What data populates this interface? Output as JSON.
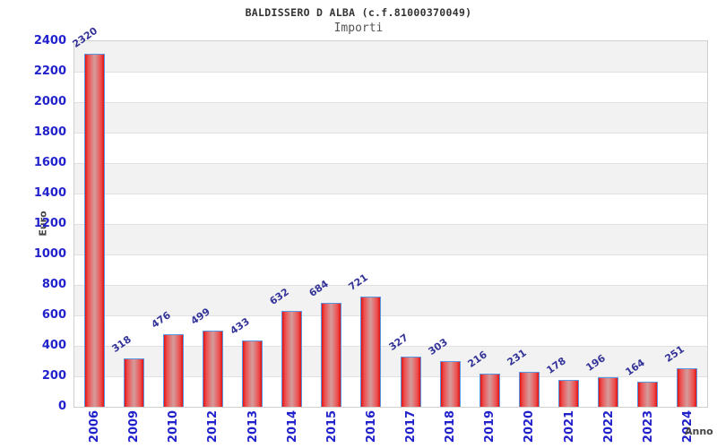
{
  "chart_data": {
    "type": "bar",
    "title": "BALDISSERO D ALBA (c.f.81000370049)",
    "subtitle": "Importi",
    "xlabel": "Anno",
    "ylabel": "Euro",
    "categories": [
      "2006",
      "2009",
      "2010",
      "2012",
      "2013",
      "2014",
      "2015",
      "2016",
      "2017",
      "2018",
      "2019",
      "2020",
      "2021",
      "2022",
      "2023",
      "2024"
    ],
    "values": [
      2320,
      318,
      476,
      499,
      433,
      632,
      684,
      721,
      327,
      303,
      216,
      231,
      178,
      196,
      164,
      251
    ],
    "ylim": [
      0,
      2400
    ],
    "ytick_step": 200,
    "legend": "none",
    "grid": "horizontal-bands-every-200",
    "colors": {
      "bar_edge_red": "#e01414",
      "bar_center_red": "#d49c9c",
      "bar_border_blue": "#5b97e0",
      "tick_label_blue": "#2222cc",
      "value_label_blue": "#333399",
      "band_gray": "#f2f2f2",
      "band_white": "#ffffff",
      "grid_line": "#e0e0e0",
      "plot_border": "#d0d0d0",
      "title_color": "#333333",
      "subtitle_color": "#555555",
      "axis_title_color": "#444444"
    }
  }
}
